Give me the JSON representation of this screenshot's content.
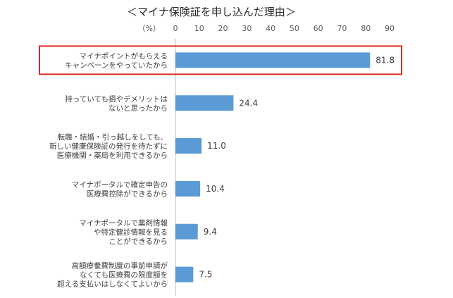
{
  "chart_data": {
    "type": "bar",
    "orientation": "horizontal",
    "title": "＜マイナ保険証を申し込んだ理由＞",
    "unit_label": "（%）",
    "xlim": [
      0,
      90
    ],
    "ticks": [
      0,
      10,
      20,
      30,
      40,
      50,
      60,
      70,
      80,
      90
    ],
    "axis_position": "top",
    "grid": false,
    "legend": "none",
    "categories": [
      [
        "マイナポイントがもらえる",
        "キャンペーンをやっていたから"
      ],
      [
        "持っていても損やデメリットは",
        "ないと思ったから"
      ],
      [
        "転職・結婚・引っ越しをしても、",
        "新しい健康保険証の発行を待たずに",
        "医療機関・薬局を利用できるから"
      ],
      [
        "マイナポータルで確定申告の",
        "医療費控除ができるから"
      ],
      [
        "マイナポータルで薬剤情報",
        "や特定健診情報を見る",
        "ことができるから"
      ],
      [
        "高額療養費制度の事前申請が",
        "なくても医療費の限度額を",
        "超える支払いはしなくてよいから"
      ]
    ],
    "values": [
      81.8,
      24.4,
      11.0,
      10.4,
      9.4,
      7.5
    ],
    "value_labels": [
      "81.8",
      "24.4",
      "11.0",
      "10.4",
      "9.4",
      "7.5"
    ],
    "highlighted_index": 0,
    "colors": {
      "bar": "#5b9bd5",
      "highlight": "#e0281e",
      "axis": "#bfbfbf"
    }
  }
}
